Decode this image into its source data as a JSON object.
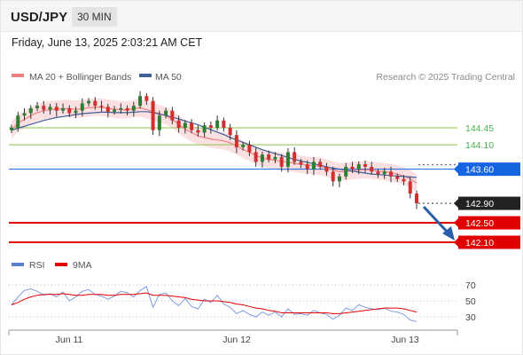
{
  "header": {
    "symbol": "USD/JPY",
    "interval": "30 MIN",
    "datetime": "Friday, June 13, 2025 2:03:21 AM CET"
  },
  "legend": {
    "ma20": {
      "label": "MA 20 + Bollinger Bands",
      "color": "#f08080"
    },
    "ma50": {
      "label": "MA 50",
      "color": "#3f5f9a"
    },
    "credit": "Research © 2025 Trading Central",
    "rsi": {
      "label": "RSI",
      "color": "#5b7fd1"
    },
    "rsi9": {
      "label": "9MA",
      "color": "#e00000"
    }
  },
  "chart_data": [
    {
      "type": "candlestick",
      "title": "USD/JPY",
      "x_ticks": [
        "Jun 11",
        "Jun 12",
        "Jun 13"
      ],
      "ylim": [
        141.9,
        145.25
      ],
      "current_price": 142.9,
      "levels": [
        {
          "value": 144.45,
          "label": "144.45",
          "kind": "resistance",
          "color": "#8bc34a"
        },
        {
          "value": 144.1,
          "label": "144.10",
          "kind": "resistance",
          "color": "#8bc34a"
        },
        {
          "value": 143.6,
          "label": "143.60",
          "kind": "pivot",
          "color": "#1565e0"
        },
        {
          "value": 142.5,
          "label": "142.50",
          "kind": "support",
          "color": "#e00000"
        },
        {
          "value": 142.1,
          "label": "142.10",
          "kind": "support",
          "color": "#e00000"
        }
      ],
      "close_series": [
        144.45,
        144.7,
        144.75,
        144.85,
        144.9,
        144.82,
        144.88,
        144.8,
        144.85,
        144.75,
        144.8,
        144.95,
        145.0,
        144.9,
        144.88,
        144.78,
        144.82,
        144.85,
        144.8,
        144.9,
        145.1,
        145.0,
        144.4,
        144.7,
        144.8,
        144.6,
        144.45,
        144.55,
        144.4,
        144.35,
        144.5,
        144.45,
        144.6,
        144.45,
        144.3,
        144.05,
        144.1,
        143.95,
        143.75,
        143.9,
        143.8,
        143.85,
        143.65,
        143.95,
        143.75,
        143.7,
        143.6,
        143.75,
        143.65,
        143.55,
        143.35,
        143.45,
        143.65,
        143.6,
        143.7,
        143.65,
        143.55,
        143.5,
        143.55,
        143.45,
        143.4,
        143.35,
        143.1,
        142.9
      ],
      "ma20_series": [
        144.4,
        144.55,
        144.62,
        144.7,
        144.76,
        144.8,
        144.82,
        144.83,
        144.84,
        144.84,
        144.83,
        144.84,
        144.86,
        144.87,
        144.87,
        144.85,
        144.83,
        144.82,
        144.82,
        144.84,
        144.86,
        144.82,
        144.78,
        144.74,
        144.7,
        144.62,
        144.52,
        144.42,
        144.35,
        144.28,
        144.25,
        144.22,
        144.2,
        144.18,
        144.14,
        144.08,
        144.0,
        143.95,
        143.88,
        143.83,
        143.8,
        143.78,
        143.76,
        143.74,
        143.72,
        143.7,
        143.68,
        143.67,
        143.66,
        143.62,
        143.58,
        143.55,
        143.55,
        143.57,
        143.58,
        143.59,
        143.58,
        143.56,
        143.55,
        143.53,
        143.5,
        143.46,
        143.4,
        143.32
      ],
      "ma50_series": [
        144.4,
        144.44,
        144.48,
        144.52,
        144.56,
        144.6,
        144.63,
        144.66,
        144.68,
        144.7,
        144.72,
        144.74,
        144.75,
        144.76,
        144.77,
        144.77,
        144.76,
        144.76,
        144.76,
        144.77,
        144.78,
        144.78,
        144.76,
        144.73,
        144.7,
        144.67,
        144.63,
        144.59,
        144.55,
        144.51,
        144.46,
        144.41,
        144.36,
        144.31,
        144.25,
        144.2,
        144.15,
        144.1,
        144.05,
        144.0,
        143.96,
        143.92,
        143.88,
        143.84,
        143.8,
        143.77,
        143.74,
        143.71,
        143.68,
        143.65,
        143.62,
        143.6,
        143.58,
        143.56,
        143.54,
        143.52,
        143.5,
        143.49,
        143.48,
        143.47,
        143.46,
        143.45,
        143.44,
        143.43
      ]
    },
    {
      "type": "line",
      "title": "RSI",
      "y_ticks": [
        30,
        50,
        70
      ],
      "ylim": [
        20,
        80
      ],
      "series": [
        {
          "name": "RSI",
          "values": [
            45,
            55,
            63,
            65,
            62,
            57,
            59,
            55,
            61,
            50,
            55,
            62,
            64,
            58,
            56,
            52,
            56,
            62,
            60,
            55,
            63,
            68,
            42,
            58,
            60,
            50,
            44,
            53,
            43,
            40,
            52,
            48,
            57,
            46,
            42,
            34,
            38,
            33,
            30,
            36,
            32,
            36,
            30,
            40,
            33,
            34,
            32,
            38,
            35,
            33,
            27,
            32,
            41,
            38,
            45,
            42,
            40,
            39,
            41,
            37,
            36,
            33,
            26,
            24
          ]
        },
        {
          "name": "9MA",
          "values": [
            45,
            48,
            52,
            55,
            57,
            58,
            58,
            58,
            59,
            58,
            57,
            57,
            58,
            58,
            58,
            57,
            57,
            58,
            58,
            58,
            59,
            60,
            57,
            57,
            57,
            56,
            55,
            54,
            52,
            51,
            50,
            50,
            50,
            49,
            48,
            46,
            45,
            43,
            41,
            40,
            38,
            37,
            35,
            35,
            35,
            35,
            35,
            35,
            35,
            35,
            34,
            34,
            35,
            36,
            37,
            38,
            39,
            40,
            41,
            41,
            41,
            40,
            38,
            36
          ]
        }
      ]
    }
  ]
}
